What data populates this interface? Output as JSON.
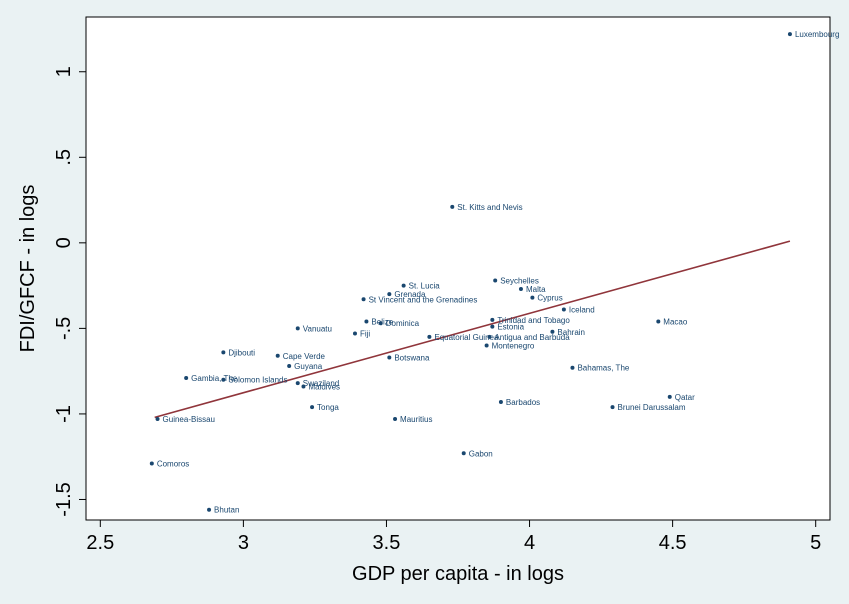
{
  "colors": {
    "outer_background": "#eaf2f3",
    "plot_background": "#ffffff",
    "points": "#1a476f",
    "fit_line": "#90353b"
  },
  "chart_data": {
    "type": "scatter",
    "title": "",
    "xlabel": "GDP per capita - in logs",
    "ylabel": "FDI/GFCF - in logs",
    "xlim": [
      2.45,
      5.05
    ],
    "ylim": [
      -1.62,
      1.32
    ],
    "xticks": [
      2.5,
      3,
      3.5,
      4,
      4.5,
      5
    ],
    "xtick_labels": [
      "2.5",
      "3",
      "3.5",
      "4",
      "4.5",
      "5"
    ],
    "yticks": [
      -1.5,
      -1,
      -0.5,
      0,
      0.5,
      1
    ],
    "ytick_labels": [
      "-1.5",
      "-1",
      "-.5",
      "0",
      ".5",
      "1"
    ],
    "grid": false,
    "legend": "none",
    "fit_line": {
      "x": [
        2.69,
        4.91
      ],
      "y": [
        -1.02,
        0.01
      ]
    },
    "points": [
      {
        "label": "Luxembourg",
        "x": 4.91,
        "y": 1.22
      },
      {
        "label": "St. Kitts and Nevis",
        "x": 3.73,
        "y": 0.21
      },
      {
        "label": "Seychelles",
        "x": 3.88,
        "y": -0.22
      },
      {
        "label": "St. Lucia",
        "x": 3.56,
        "y": -0.25
      },
      {
        "label": "Malta",
        "x": 3.97,
        "y": -0.27
      },
      {
        "label": "Grenada",
        "x": 3.51,
        "y": -0.3
      },
      {
        "label": "Cyprus",
        "x": 4.01,
        "y": -0.32
      },
      {
        "label": "St Vincent and the Grenadines",
        "x": 3.42,
        "y": -0.33
      },
      {
        "label": "Iceland",
        "x": 4.12,
        "y": -0.39
      },
      {
        "label": "Trinidad and Tobago",
        "x": 3.87,
        "y": -0.45
      },
      {
        "label": "Belize",
        "x": 3.43,
        "y": -0.46
      },
      {
        "label": "Dominica",
        "x": 3.48,
        "y": -0.47
      },
      {
        "label": "Macao",
        "x": 4.45,
        "y": -0.46
      },
      {
        "label": "Estonia",
        "x": 3.87,
        "y": -0.49
      },
      {
        "label": "Vanuatu",
        "x": 3.19,
        "y": -0.5
      },
      {
        "label": "Bahrain",
        "x": 4.08,
        "y": -0.52
      },
      {
        "label": "Fiji",
        "x": 3.39,
        "y": -0.53
      },
      {
        "label": "Equatorial Guinea",
        "x": 3.65,
        "y": -0.55
      },
      {
        "label": "Antigua and Barbuda",
        "x": 3.86,
        "y": -0.55
      },
      {
        "label": "Montenegro",
        "x": 3.85,
        "y": -0.6
      },
      {
        "label": "Djibouti",
        "x": 2.93,
        "y": -0.64
      },
      {
        "label": "Cape Verde",
        "x": 3.12,
        "y": -0.66
      },
      {
        "label": "Botswana",
        "x": 3.51,
        "y": -0.67
      },
      {
        "label": "Guyana",
        "x": 3.16,
        "y": -0.72
      },
      {
        "label": "Bahamas, The",
        "x": 4.15,
        "y": -0.73
      },
      {
        "label": "Gambia, The",
        "x": 2.8,
        "y": -0.79
      },
      {
        "label": "Solomon Islands",
        "x": 2.93,
        "y": -0.8
      },
      {
        "label": "Swaziland",
        "x": 3.19,
        "y": -0.82
      },
      {
        "label": "Maldives",
        "x": 3.21,
        "y": -0.84
      },
      {
        "label": "Qatar",
        "x": 4.49,
        "y": -0.9
      },
      {
        "label": "Barbados",
        "x": 3.9,
        "y": -0.93
      },
      {
        "label": "Tonga",
        "x": 3.24,
        "y": -0.96
      },
      {
        "label": "Brunei Darussalam",
        "x": 4.29,
        "y": -0.96
      },
      {
        "label": "Guinea-Bissau",
        "x": 2.7,
        "y": -1.03
      },
      {
        "label": "Mauritius",
        "x": 3.53,
        "y": -1.03
      },
      {
        "label": "Gabon",
        "x": 3.77,
        "y": -1.23
      },
      {
        "label": "Comoros",
        "x": 2.68,
        "y": -1.29
      },
      {
        "label": "Bhutan",
        "x": 2.88,
        "y": -1.56
      }
    ]
  }
}
